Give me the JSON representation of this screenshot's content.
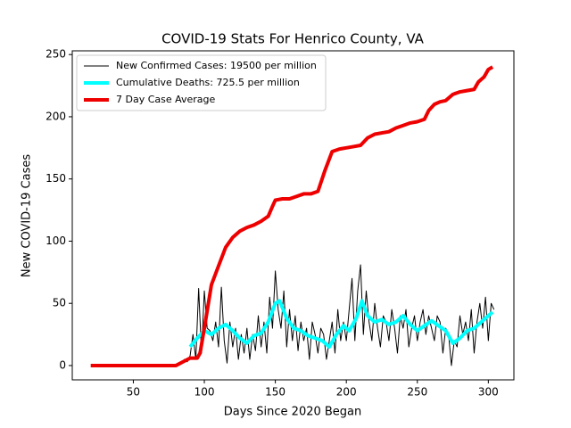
{
  "chart_data": {
    "type": "line",
    "title": "COVID-19 Stats For Henrico County, VA",
    "x_label": "Days Since 2020 Began",
    "y_label": "New COVID-19 Cases",
    "xlim": [
      7,
      318
    ],
    "ylim": [
      -11.5,
      253
    ],
    "xticks": [
      50,
      100,
      150,
      200,
      250,
      300
    ],
    "yticks": [
      0,
      50,
      100,
      150,
      200,
      250
    ],
    "grid": false,
    "legend": "upper left",
    "series": [
      {
        "name": "New Confirmed Cases: 19500 per million",
        "color": "#000000",
        "linewidth": 1,
        "x": [
          84,
          86,
          88,
          90,
          92,
          94,
          96,
          98,
          100,
          102,
          104,
          106,
          108,
          110,
          112,
          114,
          116,
          118,
          120,
          122,
          124,
          126,
          128,
          130,
          132,
          134,
          136,
          138,
          140,
          142,
          144,
          146,
          148,
          150,
          152,
          154,
          156,
          158,
          160,
          162,
          164,
          166,
          168,
          170,
          172,
          174,
          176,
          178,
          180,
          182,
          184,
          186,
          188,
          190,
          192,
          194,
          196,
          198,
          200,
          202,
          204,
          206,
          208,
          210,
          212,
          214,
          216,
          218,
          220,
          222,
          224,
          226,
          228,
          230,
          232,
          234,
          236,
          238,
          240,
          242,
          244,
          246,
          248,
          250,
          252,
          254,
          256,
          258,
          260,
          262,
          264,
          266,
          268,
          270,
          272,
          274,
          276,
          278,
          280,
          282,
          284,
          286,
          288,
          290,
          292,
          294,
          296,
          298,
          300,
          302,
          304
        ],
        "values": [
          2,
          5,
          3,
          8,
          25,
          5,
          62,
          10,
          60,
          30,
          28,
          20,
          35,
          15,
          63,
          20,
          2,
          35,
          15,
          30,
          5,
          25,
          10,
          30,
          5,
          25,
          12,
          40,
          15,
          35,
          10,
          55,
          30,
          76,
          45,
          30,
          60,
          15,
          45,
          20,
          40,
          12,
          35,
          20,
          30,
          5,
          35,
          25,
          10,
          30,
          25,
          5,
          20,
          35,
          10,
          45,
          20,
          35,
          20,
          45,
          70,
          20,
          60,
          81,
          25,
          60,
          35,
          20,
          50,
          30,
          15,
          40,
          35,
          20,
          45,
          30,
          10,
          40,
          30,
          45,
          15,
          30,
          40,
          20,
          35,
          45,
          25,
          40,
          30,
          20,
          40,
          35,
          10,
          30,
          25,
          0,
          20,
          15,
          40,
          25,
          35,
          20,
          45,
          10,
          35,
          50,
          30,
          55,
          20,
          50,
          45
        ]
      },
      {
        "name": "Cumulative Deaths: 725.5 per million",
        "color": "#00ffff",
        "linewidth": 4,
        "x": [
          90,
          95,
          100,
          105,
          110,
          115,
          120,
          125,
          130,
          135,
          140,
          145,
          150,
          153,
          158,
          163,
          168,
          173,
          178,
          183,
          188,
          193,
          198,
          202,
          207,
          211,
          215,
          220,
          225,
          230,
          235,
          240,
          245,
          250,
          255,
          260,
          265,
          270,
          275,
          280,
          285,
          290,
          295,
          300,
          303
        ],
        "values": [
          15,
          22,
          28,
          25,
          30,
          33,
          28,
          22,
          18,
          24,
          26,
          35,
          50,
          52,
          38,
          30,
          28,
          24,
          22,
          20,
          15,
          25,
          32,
          28,
          38,
          52,
          40,
          35,
          37,
          33,
          35,
          40,
          33,
          28,
          32,
          36,
          32,
          28,
          18,
          22,
          28,
          30,
          35,
          40,
          43
        ]
      },
      {
        "name": "7 Day Case Average",
        "color": "#ee0000",
        "linewidth": 4,
        "x": [
          20,
          80,
          85,
          90,
          95,
          97,
          100,
          105,
          110,
          115,
          120,
          125,
          130,
          135,
          140,
          145,
          148,
          150,
          155,
          160,
          165,
          170,
          175,
          180,
          185,
          190,
          195,
          200,
          205,
          210,
          215,
          220,
          225,
          230,
          235,
          240,
          245,
          250,
          255,
          258,
          262,
          266,
          270,
          275,
          280,
          285,
          290,
          293,
          297,
          300,
          303
        ],
        "values": [
          0,
          0,
          3,
          6,
          6,
          10,
          30,
          65,
          80,
          95,
          103,
          108,
          111,
          113,
          116,
          120,
          128,
          133,
          134,
          134,
          136,
          138,
          138,
          140,
          157,
          172,
          174,
          175,
          176,
          177,
          183,
          186,
          187,
          188,
          191,
          193,
          195,
          196,
          198,
          205,
          210,
          212,
          213,
          218,
          220,
          221,
          222,
          228,
          232,
          238,
          240
        ]
      }
    ]
  }
}
